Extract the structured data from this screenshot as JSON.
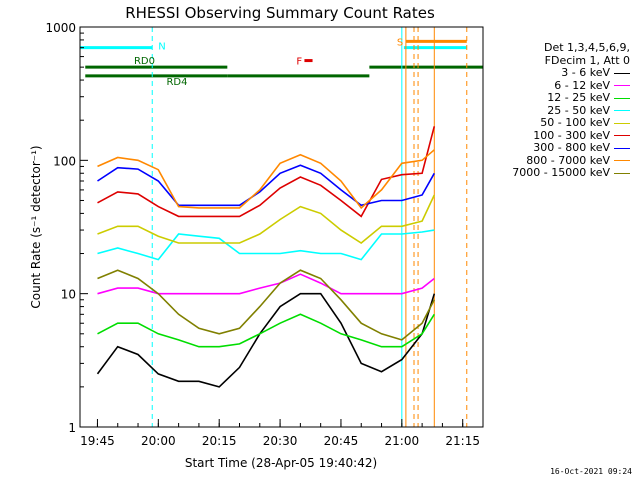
{
  "chart_data": {
    "type": "line",
    "title": "RHESSI Observing Summary Count Rates",
    "xlabel": "Start Time (28-Apr-05 19:40:42)",
    "ylabel": "Count Rate (s⁻¹ detector⁻¹)",
    "y_scale": "log",
    "ylim": [
      1,
      1000
    ],
    "yticks": [
      "1",
      "10",
      "100",
      "1000"
    ],
    "xlim": [
      "19:40:42",
      "21:20:00"
    ],
    "xticks": [
      "19:45",
      "20:00",
      "20:15",
      "20:30",
      "20:45",
      "21:00",
      "21:15"
    ],
    "legend_header": [
      "Det 1,3,4,5,6,9,",
      "FDecim 1, Att 0"
    ],
    "legend_position": "right",
    "series": [
      {
        "name": "3 - 6 keV",
        "color": "#000000",
        "x": [
          "19:45",
          "19:50",
          "19:55",
          "20:00",
          "20:05",
          "20:10",
          "20:15",
          "20:20",
          "20:25",
          "20:30",
          "20:35",
          "20:40",
          "20:45",
          "20:50",
          "20:55",
          "21:00",
          "21:05",
          "21:08"
        ],
        "values": [
          2.5,
          4,
          3.5,
          2.5,
          2.2,
          2.2,
          2.0,
          2.8,
          5,
          8,
          10,
          10,
          6,
          3,
          2.6,
          3.2,
          5,
          10
        ]
      },
      {
        "name": "6 - 12 keV",
        "color": "#ff00ff",
        "x": [
          "19:45",
          "19:50",
          "19:55",
          "20:00",
          "20:05",
          "20:10",
          "20:15",
          "20:20",
          "20:25",
          "20:30",
          "20:35",
          "20:40",
          "20:45",
          "20:50",
          "20:55",
          "21:00",
          "21:05",
          "21:08"
        ],
        "values": [
          10,
          11,
          11,
          10,
          10,
          10,
          10,
          10,
          11,
          12,
          14,
          12,
          10,
          10,
          10,
          10,
          11,
          13
        ]
      },
      {
        "name": "12 - 25 keV",
        "color": "#00dd00",
        "x": [
          "19:45",
          "19:50",
          "19:55",
          "20:00",
          "20:05",
          "20:10",
          "20:15",
          "20:20",
          "20:25",
          "20:30",
          "20:35",
          "20:40",
          "20:45",
          "20:50",
          "20:55",
          "21:00",
          "21:05",
          "21:08"
        ],
        "values": [
          5,
          6,
          6,
          5,
          4.5,
          4,
          4,
          4.2,
          5,
          6,
          7,
          6,
          5,
          4.5,
          4,
          4,
          5,
          7
        ]
      },
      {
        "name": "25 - 50 keV",
        "color": "#00ffff",
        "x": [
          "19:45",
          "19:50",
          "19:55",
          "20:00",
          "20:05",
          "20:10",
          "20:15",
          "20:20",
          "20:25",
          "20:30",
          "20:35",
          "20:40",
          "20:45",
          "20:50",
          "20:55",
          "21:00",
          "21:05",
          "21:08"
        ],
        "values": [
          20,
          22,
          20,
          18,
          28,
          27,
          26,
          20,
          20,
          20,
          21,
          20,
          20,
          18,
          28,
          28,
          29,
          30
        ]
      },
      {
        "name": "50 - 100 keV",
        "color": "#cccc00",
        "x": [
          "19:45",
          "19:50",
          "19:55",
          "20:00",
          "20:05",
          "20:10",
          "20:15",
          "20:20",
          "20:25",
          "20:30",
          "20:35",
          "20:40",
          "20:45",
          "20:50",
          "20:55",
          "21:00",
          "21:05",
          "21:08"
        ],
        "values": [
          28,
          32,
          32,
          27,
          24,
          24,
          24,
          24,
          28,
          36,
          45,
          40,
          30,
          24,
          32,
          32,
          35,
          55
        ]
      },
      {
        "name": "100 - 300 keV",
        "color": "#dd0000",
        "x": [
          "19:45",
          "19:50",
          "19:55",
          "20:00",
          "20:05",
          "20:10",
          "20:15",
          "20:20",
          "20:25",
          "20:30",
          "20:35",
          "20:40",
          "20:45",
          "20:50",
          "20:55",
          "21:00",
          "21:05",
          "21:08"
        ],
        "values": [
          48,
          58,
          56,
          45,
          38,
          38,
          38,
          38,
          46,
          62,
          75,
          65,
          50,
          38,
          72,
          78,
          80,
          180
        ]
      },
      {
        "name": "300 - 800 keV",
        "color": "#0000ff",
        "x": [
          "19:45",
          "19:50",
          "19:55",
          "20:00",
          "20:05",
          "20:10",
          "20:15",
          "20:20",
          "20:25",
          "20:30",
          "20:35",
          "20:40",
          "20:45",
          "20:50",
          "20:55",
          "21:00",
          "21:05",
          "21:08"
        ],
        "values": [
          70,
          88,
          86,
          70,
          46,
          46,
          46,
          46,
          58,
          80,
          92,
          80,
          60,
          46,
          50,
          50,
          55,
          80
        ]
      },
      {
        "name": "800 - 7000 keV",
        "color": "#ff8800",
        "x": [
          "19:45",
          "19:50",
          "19:55",
          "20:00",
          "20:05",
          "20:10",
          "20:15",
          "20:20",
          "20:25",
          "20:30",
          "20:35",
          "20:40",
          "20:45",
          "20:50",
          "20:55",
          "21:00",
          "21:05",
          "21:08"
        ],
        "values": [
          90,
          105,
          100,
          85,
          45,
          44,
          44,
          44,
          60,
          95,
          110,
          95,
          70,
          44,
          60,
          95,
          100,
          120
        ]
      },
      {
        "name": "7000 - 15000 keV",
        "color": "#808000",
        "x": [
          "19:45",
          "19:50",
          "19:55",
          "20:00",
          "20:05",
          "20:10",
          "20:15",
          "20:20",
          "20:25",
          "20:30",
          "20:35",
          "20:40",
          "20:45",
          "20:50",
          "20:55",
          "21:00",
          "21:05",
          "21:08"
        ],
        "values": [
          13,
          15,
          13,
          10,
          7,
          5.5,
          5,
          5.5,
          8,
          12,
          15,
          13,
          9,
          6,
          5,
          4.5,
          6,
          9
        ]
      }
    ],
    "annotations": [
      {
        "text": "N",
        "color": "#00ffff"
      },
      {
        "text": "F",
        "color": "#dd0000"
      },
      {
        "text": "S",
        "color": "#ff8800"
      },
      {
        "text": "RD0",
        "color": "#006600"
      },
      {
        "text": "RD4",
        "color": "#006600"
      }
    ],
    "flag_bars": [
      {
        "label": "N",
        "color": "#00ffff",
        "level": 700,
        "intervals": [
          [
            "19:40:42",
            "19:58:30"
          ],
          [
            "21:00:30",
            "21:16:00"
          ]
        ]
      },
      {
        "label": "RD0",
        "color": "#006600",
        "level": 500,
        "intervals": [
          [
            "19:42:00",
            "20:17:00"
          ],
          [
            "20:52:00",
            "21:20:00"
          ]
        ]
      },
      {
        "label": "RD4",
        "color": "#006600",
        "level": 430,
        "intervals": [
          [
            "19:42:00",
            "20:17:00"
          ],
          [
            "20:17:00",
            "20:52:00"
          ]
        ]
      },
      {
        "label": "F",
        "color": "#dd0000",
        "level": 560,
        "intervals": [
          [
            "20:36:00",
            "20:38:00"
          ]
        ]
      },
      {
        "label": "S",
        "color": "#ff8800",
        "level": 780,
        "intervals": [
          [
            "21:01:00",
            "21:16:00"
          ]
        ]
      }
    ],
    "vlines": [
      {
        "time": "19:40:42",
        "color": "#00ffff",
        "style": "solid"
      },
      {
        "time": "19:58:30",
        "color": "#00ffff",
        "style": "dashed"
      },
      {
        "time": "21:00:00",
        "color": "#00ffff",
        "style": "solid"
      },
      {
        "time": "21:01:00",
        "color": "#ff8800",
        "style": "solid"
      },
      {
        "time": "21:03:00",
        "color": "#ff8800",
        "style": "dashed"
      },
      {
        "time": "21:04:00",
        "color": "#ff8800",
        "style": "dashed"
      },
      {
        "time": "21:08:00",
        "color": "#ff8800",
        "style": "solid"
      },
      {
        "time": "21:16:00",
        "color": "#ff8800",
        "style": "dashed"
      }
    ]
  },
  "footer": {
    "timestamp": "16-Oct-2021 09:24"
  }
}
